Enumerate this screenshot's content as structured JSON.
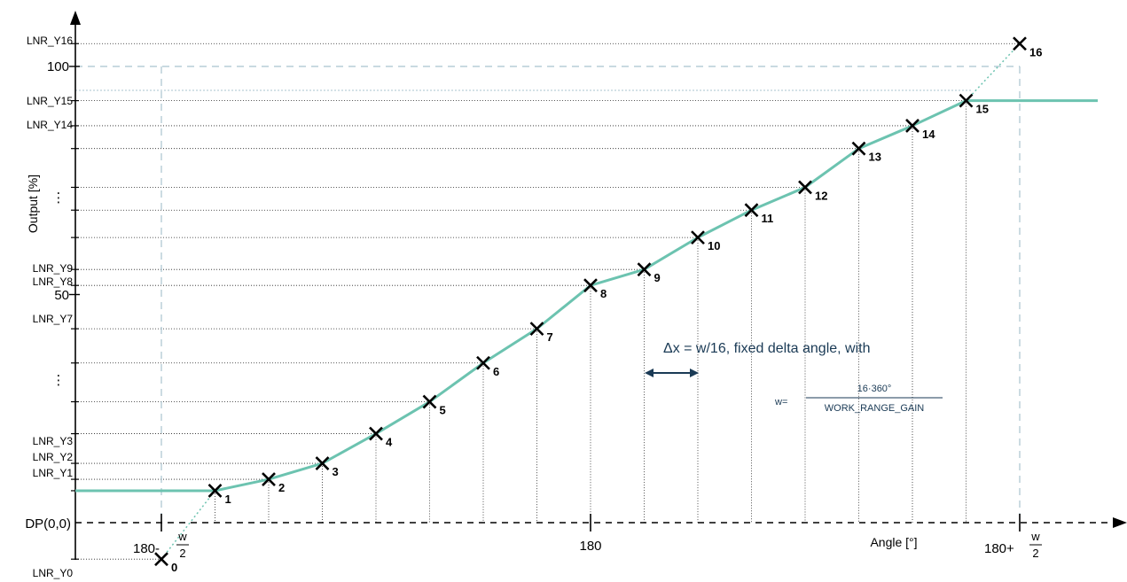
{
  "diagram": {
    "y_axis_title": "Output [%]",
    "x_axis_title": "Angle [°]",
    "origin_label": "DP(0,0)",
    "y_labels": {
      "y16": "LNR_Y16",
      "hundred": "100",
      "y15": "LNR_Y15",
      "y14": "LNR_Y14",
      "ellipsis_top": "⋮",
      "y9": "LNR_Y9",
      "y8": "LNR_Y8",
      "fifty": "50",
      "y7": "LNR_Y7",
      "ellipsis_bottom": "⋮",
      "y3": "LNR_Y3",
      "y2": "LNR_Y2",
      "y1": "LNR_Y1",
      "y0": "LNR_Y0"
    },
    "x_labels": {
      "left_prefix": "180-",
      "center": "180",
      "right_prefix": "180+",
      "w": "w",
      "two": "2"
    },
    "points": [
      {
        "id": "0",
        "angle": 0,
        "output": -8
      },
      {
        "id": "1",
        "angle": 1,
        "output": 7
      },
      {
        "id": "2",
        "angle": 2,
        "output": 9.5
      },
      {
        "id": "3",
        "angle": 3,
        "output": 13
      },
      {
        "id": "4",
        "angle": 4,
        "output": 19.5
      },
      {
        "id": "5",
        "angle": 5,
        "output": 26.5
      },
      {
        "id": "6",
        "angle": 6,
        "output": 35
      },
      {
        "id": "7",
        "angle": 7,
        "output": 42.5
      },
      {
        "id": "8",
        "angle": 8,
        "output": 52
      },
      {
        "id": "9",
        "angle": 9,
        "output": 55.5
      },
      {
        "id": "10",
        "angle": 10,
        "output": 62.5
      },
      {
        "id": "11",
        "angle": 11,
        "output": 68.5
      },
      {
        "id": "12",
        "angle": 12,
        "output": 73.5
      },
      {
        "id": "13",
        "angle": 13,
        "output": 82
      },
      {
        "id": "14",
        "angle": 14,
        "output": 87
      },
      {
        "id": "15",
        "angle": 15,
        "output": 92.5
      },
      {
        "id": "16",
        "angle": 16,
        "output": 105
      }
    ],
    "annotation": {
      "delta_text": "Δx = w/16, fixed delta angle, with",
      "w_prefix": "w=",
      "numerator": "16·360°",
      "denominator": "WORK_RANGE_GAIN"
    },
    "colors": {
      "curve": "#6cc3b0",
      "dashed_box": "#a9c3cf",
      "arrow": "#1a3a55",
      "axis": "#000000"
    }
  }
}
